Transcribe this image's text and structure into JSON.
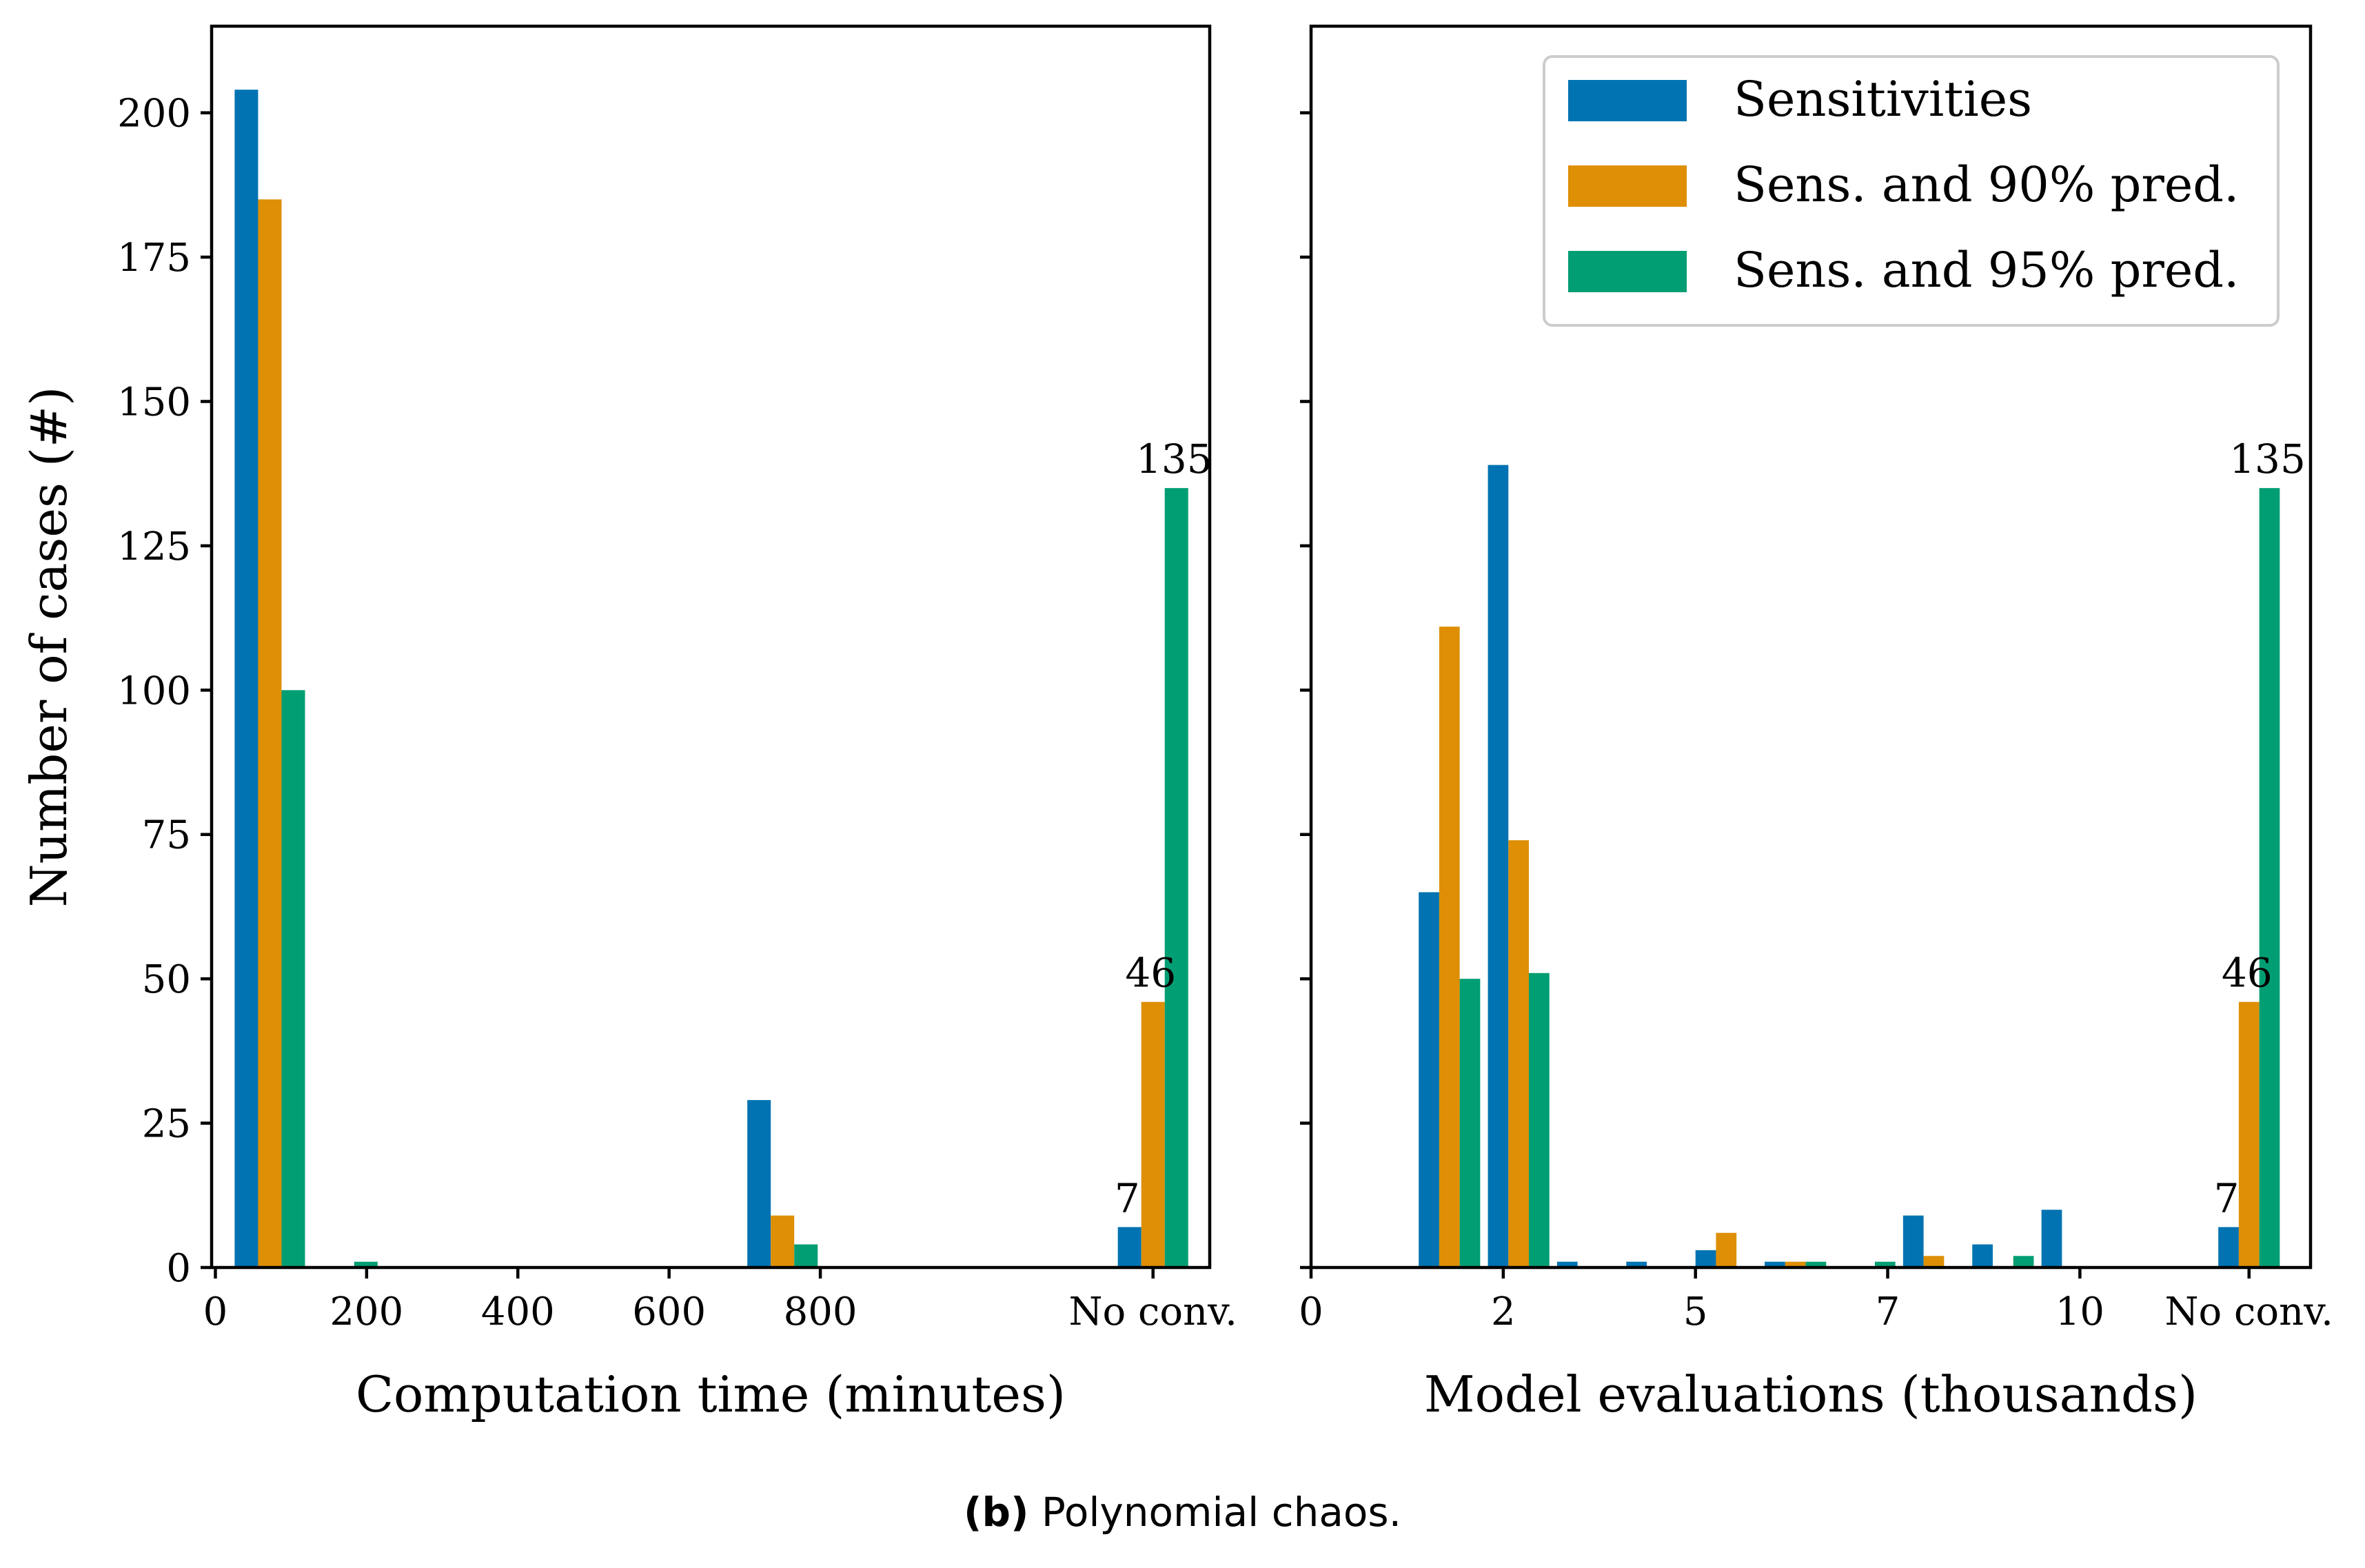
{
  "colors": {
    "Sensitivities": "#0173b2",
    "Sens. and 90% pred.": "#de8f05",
    "Sens. and 95% pred.": "#029e73"
  },
  "caption": {
    "label": "(b)",
    "text": " Polynomial chaos."
  },
  "chart_data": [
    {
      "type": "bar",
      "xlabel": "Computation time (minutes)",
      "ylabel": "Number of cases (#)",
      "ylim": [
        0,
        215
      ],
      "yticks": [
        0,
        25,
        50,
        75,
        100,
        125,
        150,
        175,
        200
      ],
      "xlim": [
        -5,
        1315
      ],
      "xticks": [
        0,
        200,
        400,
        600,
        800
      ],
      "xtick_labels": [
        "0",
        "200",
        "400",
        "600",
        "800"
      ],
      "extra_category": {
        "label": "No conv.",
        "x": 1240
      },
      "bin_centers": [
        72,
        168,
        750,
        1240
      ],
      "series": [
        {
          "name": "Sensitivities",
          "values": [
            204,
            0,
            29,
            7
          ]
        },
        {
          "name": "Sens. and 90% pred.",
          "values": [
            185,
            0,
            9,
            46
          ]
        },
        {
          "name": "Sens. and 95% pred.",
          "values": [
            100,
            1,
            4,
            135
          ]
        }
      ],
      "annotations": [
        {
          "text": "7",
          "series": 0,
          "bin": 3
        },
        {
          "text": "46",
          "series": 1,
          "bin": 3
        },
        {
          "text": "135",
          "series": 2,
          "bin": 3
        }
      ],
      "legend": false
    },
    {
      "type": "bar",
      "xlabel": "Model evaluations (thousands)",
      "ylabel": "",
      "ylim": [
        0,
        215
      ],
      "yticks": [
        0,
        25,
        50,
        75,
        100,
        125,
        150,
        175,
        200
      ],
      "xlim": [
        0,
        13
      ],
      "xticks": [
        0,
        2.5,
        5,
        7.5,
        10
      ],
      "xtick_labels": [
        "0",
        "2",
        "5",
        "7",
        "10"
      ],
      "extra_category": {
        "label": "No conv.",
        "x": 12.2
      },
      "bin_centers": [
        1.8,
        2.7,
        3.6,
        4.5,
        5.4,
        6.3,
        7.2,
        8.1,
        9.0,
        9.9,
        12.2
      ],
      "series": [
        {
          "name": "Sensitivities",
          "values": [
            65,
            139,
            1,
            1,
            3,
            1,
            0,
            9,
            4,
            10,
            7
          ]
        },
        {
          "name": "Sens. and 90% pred.",
          "values": [
            111,
            74,
            0,
            0,
            6,
            1,
            0,
            2,
            0,
            0,
            46
          ]
        },
        {
          "name": "Sens. and 95% pred.",
          "values": [
            50,
            51,
            0,
            0,
            0,
            1,
            1,
            0,
            2,
            0,
            135
          ]
        }
      ],
      "annotations": [
        {
          "text": "7",
          "series": 0,
          "bin": 10
        },
        {
          "text": "46",
          "series": 1,
          "bin": 10
        },
        {
          "text": "135",
          "series": 2,
          "bin": 10
        }
      ],
      "legend": true,
      "legend_position": "top-right",
      "legend_entries": [
        "Sensitivities",
        "Sens. and 90% pred.",
        "Sens. and 95% pred."
      ]
    }
  ]
}
